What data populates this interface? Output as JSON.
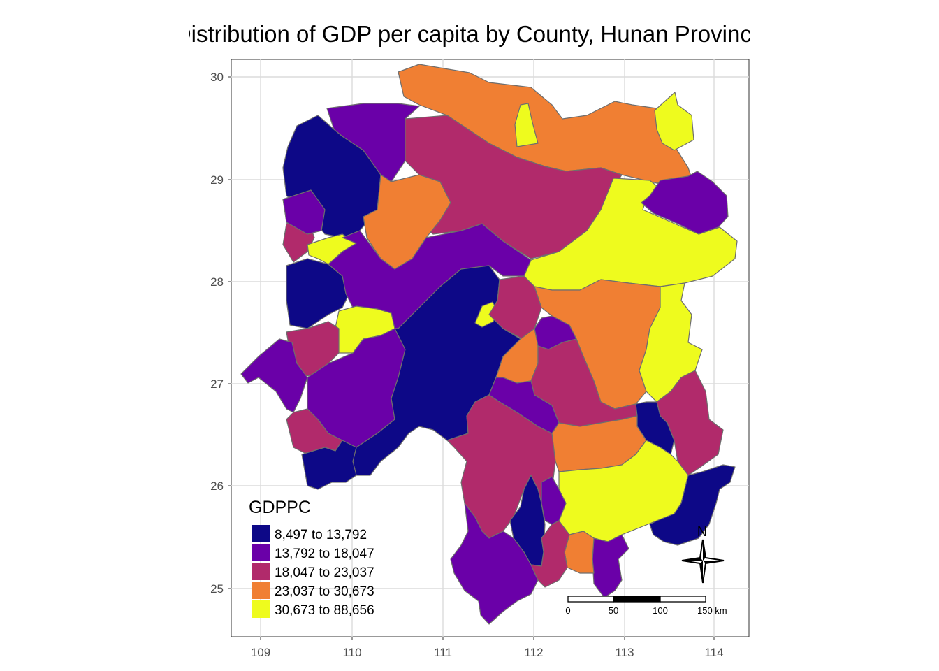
{
  "title": "Distribution of GDP per capita by County, Hunan Province",
  "axes": {
    "x_ticks": [
      "109",
      "110",
      "111",
      "112",
      "113",
      "114"
    ],
    "y_ticks": [
      "30",
      "29",
      "28",
      "27",
      "26",
      "25"
    ]
  },
  "legend": {
    "title": "GDPPC",
    "classes": [
      {
        "label": "8,497 to 13,792",
        "color": "#0d0887"
      },
      {
        "label": "13,792 to 18,047",
        "color": "#6a00a8"
      },
      {
        "label": "18,047 to 23,037",
        "color": "#b12a6b"
      },
      {
        "label": "23,037 to 30,673",
        "color": "#f07f33"
      },
      {
        "label": "30,673 to 88,656",
        "color": "#eefb1e"
      }
    ]
  },
  "scale_bar": {
    "labels": [
      "0",
      "50",
      "100",
      "150 km"
    ]
  },
  "north_arrow": {
    "label": "N"
  }
}
